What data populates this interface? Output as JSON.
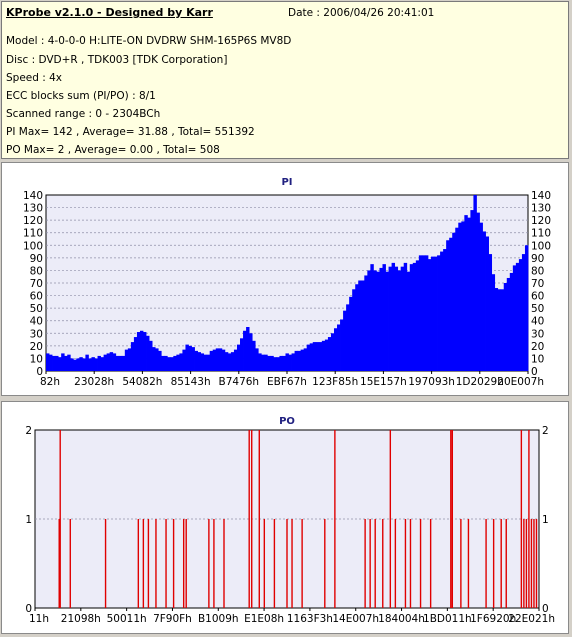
{
  "header": {
    "title": "KProbe v2.1.0 - Designed by Karr",
    "date": "Date : 2006/04/26 20:41:01",
    "lines": [
      "Model : 4-0-0-0 H:LITE-ON DVDRW SHM-165P6S MV8D",
      "Disc : DVD+R , TDK003 [TDK Corporation]",
      "Speed : 4x",
      "ECC blocks sum (PI/PO) : 8/1",
      "Scanned range : 0 - 2304BCh",
      "PI Max= 142 , Average= 31.88 , Total= 551392",
      "PO Max= 2 , Average= 0.00 , Total= 508"
    ]
  },
  "colors": {
    "pi": "#0000ff",
    "po": "#e00000",
    "plot_bg": "#ececf8",
    "grid": "#9090a8"
  },
  "chart_data": [
    {
      "type": "area",
      "title": "PI",
      "ylim": [
        0,
        140
      ],
      "yticks": [
        0,
        10,
        20,
        30,
        40,
        50,
        60,
        70,
        80,
        90,
        100,
        110,
        120,
        130,
        140
      ],
      "xtick_labels": [
        "82h",
        "23028h",
        "54082h",
        "85143h",
        "B7476h",
        "EBF67h",
        "123F85h",
        "15E157h",
        "197093h",
        "1D2029h",
        "20E007h"
      ],
      "series": [
        {
          "values": [
            14,
            13,
            12,
            12,
            11,
            14,
            12,
            13,
            10,
            9,
            10,
            11,
            10,
            13,
            10,
            11,
            10,
            12,
            11,
            13,
            14,
            15,
            14,
            12,
            12,
            12,
            17,
            18,
            23,
            27,
            31,
            32,
            31,
            28,
            24,
            19,
            18,
            16,
            12,
            12,
            11,
            11,
            12,
            13,
            14,
            17,
            21,
            20,
            19,
            16,
            15,
            14,
            13,
            13,
            16,
            17,
            18,
            18,
            17,
            15,
            14,
            15,
            17,
            21,
            26,
            32,
            35,
            30,
            24,
            18,
            14,
            13,
            13,
            12,
            12,
            11,
            11,
            12,
            12,
            14,
            13,
            14,
            16,
            16,
            17,
            18,
            21,
            22,
            23,
            23,
            23,
            24,
            25,
            27,
            30,
            34,
            37,
            41,
            48,
            53,
            59,
            65,
            69,
            72,
            72,
            76,
            80,
            85,
            80,
            79,
            82,
            85,
            79,
            83,
            86,
            83,
            80,
            83,
            86,
            79,
            85,
            86,
            88,
            92,
            92,
            92,
            89,
            91,
            91,
            92,
            95,
            97,
            104,
            106,
            110,
            114,
            118,
            119,
            124,
            122,
            128,
            140,
            126,
            118,
            111,
            107,
            93,
            77,
            66,
            65,
            65,
            70,
            74,
            78,
            84,
            86,
            89,
            93,
            100
          ],
          "max": 142,
          "average": 31.88
        }
      ]
    },
    {
      "type": "bar",
      "title": "PO",
      "ylim": [
        0,
        2
      ],
      "yticks": [
        0,
        1,
        2
      ],
      "xtick_labels": [
        "11h",
        "21098h",
        "50011h",
        "7F90Fh",
        "B1009h",
        "E1E08h",
        "1163F3h",
        "14E007h",
        "184004h",
        "1BD011h",
        "1F6920h",
        "22E021h"
      ],
      "series": [
        {
          "events": [
            [
              0.05,
              2
            ],
            [
              0.048,
              1
            ],
            [
              0.07,
              1
            ],
            [
              0.14,
              1
            ],
            [
              0.205,
              1
            ],
            [
              0.215,
              1
            ],
            [
              0.225,
              1
            ],
            [
              0.24,
              1
            ],
            [
              0.26,
              1
            ],
            [
              0.275,
              1
            ],
            [
              0.295,
              1
            ],
            [
              0.3,
              1
            ],
            [
              0.345,
              1
            ],
            [
              0.355,
              1
            ],
            [
              0.375,
              1
            ],
            [
              0.425,
              2
            ],
            [
              0.43,
              2
            ],
            [
              0.445,
              2
            ],
            [
              0.455,
              1
            ],
            [
              0.475,
              1
            ],
            [
              0.5,
              1
            ],
            [
              0.51,
              1
            ],
            [
              0.53,
              1
            ],
            [
              0.575,
              1
            ],
            [
              0.595,
              2
            ],
            [
              0.655,
              1
            ],
            [
              0.665,
              1
            ],
            [
              0.675,
              1
            ],
            [
              0.69,
              1
            ],
            [
              0.705,
              2
            ],
            [
              0.715,
              1
            ],
            [
              0.735,
              1
            ],
            [
              0.745,
              1
            ],
            [
              0.765,
              1
            ],
            [
              0.785,
              1
            ],
            [
              0.825,
              2
            ],
            [
              0.828,
              2
            ],
            [
              0.845,
              1
            ],
            [
              0.86,
              1
            ],
            [
              0.895,
              1
            ],
            [
              0.91,
              1
            ],
            [
              0.925,
              1
            ],
            [
              0.935,
              1
            ],
            [
              0.965,
              2
            ],
            [
              0.97,
              1
            ],
            [
              0.975,
              1
            ],
            [
              0.98,
              2
            ],
            [
              0.985,
              1
            ],
            [
              0.99,
              1
            ],
            [
              0.995,
              1
            ]
          ],
          "max": 2,
          "average": 0.0
        }
      ]
    }
  ]
}
